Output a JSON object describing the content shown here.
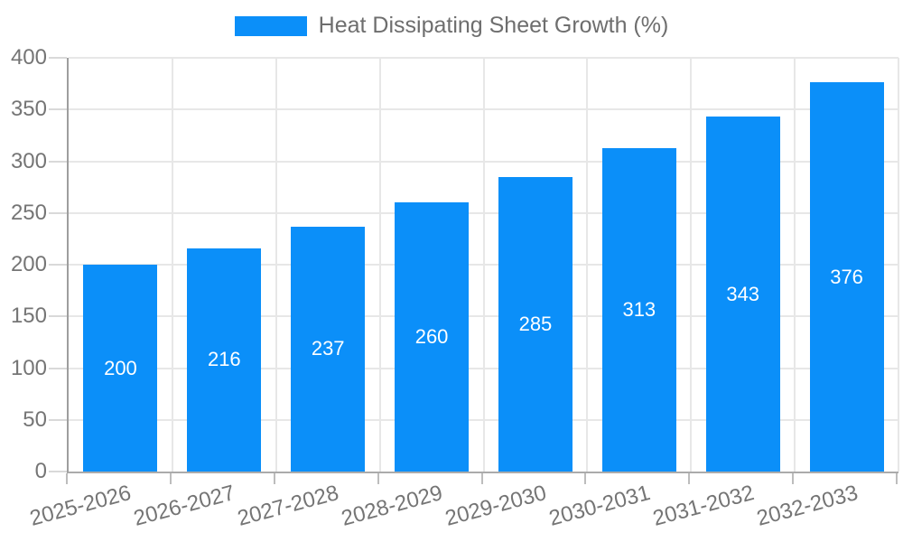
{
  "legend": {
    "label": "Heat Dissipating Sheet Growth (%)"
  },
  "chart_data": {
    "type": "bar",
    "title": "Heat Dissipating Sheet Growth (%)",
    "categories": [
      "2025-2026",
      "2026-2027",
      "2027-2028",
      "2028-2029",
      "2029-2030",
      "2030-2031",
      "2031-2032",
      "2032-2033"
    ],
    "values": [
      200,
      216,
      237,
      260,
      285,
      313,
      343,
      376
    ],
    "series_name": "Heat Dissipating Sheet Growth (%)",
    "xlabel": "",
    "ylabel": "",
    "ylim": [
      0,
      400
    ],
    "yticks": [
      0,
      50,
      100,
      150,
      200,
      250,
      300,
      350,
      400
    ],
    "grid": true,
    "legend_position": "top-center",
    "value_labels": "inside-center",
    "x_label_rotation_deg": -15,
    "colors": {
      "bar": "#0b8ff9",
      "value_label": "#ffffff",
      "grid": "#e7e7e7",
      "tick": "#d9d9d9",
      "x_tick": "#bdbdbd",
      "axis": "#9e9e9e",
      "tick_label": "#757575",
      "legend_text": "#6e6e6e",
      "background": "#ffffff"
    }
  }
}
